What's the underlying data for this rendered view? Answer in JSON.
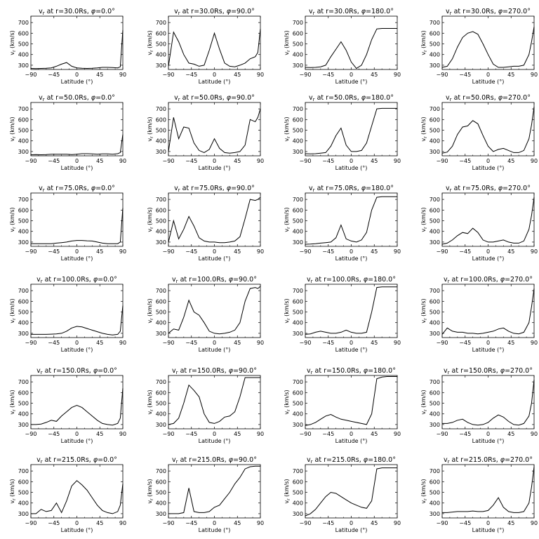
{
  "chart_data": {
    "type": "line",
    "grid": false,
    "x": [
      -90,
      -80,
      -70,
      -60,
      -50,
      -40,
      -30,
      -20,
      -10,
      0,
      10,
      20,
      30,
      40,
      50,
      60,
      70,
      80,
      85,
      90
    ],
    "xlabel": "Latitude (°)",
    "ylabel": "v_r (km/s)",
    "xticks": [
      -90,
      -45,
      0,
      45,
      90
    ],
    "yticks": [
      300,
      400,
      500,
      600,
      700
    ],
    "xlim": [
      -90,
      90
    ],
    "ylim": [
      260,
      760
    ],
    "radii": [
      "30.0",
      "50.0",
      "75.0",
      "100.0",
      "150.0",
      "215.0"
    ],
    "phis": [
      "0.0",
      "90.0",
      "180.0",
      "270.0"
    ],
    "panels": [
      {
        "r": "30.0",
        "phi": "0.0",
        "values": [
          270,
          268,
          270,
          272,
          275,
          290,
          310,
          325,
          290,
          275,
          272,
          270,
          272,
          275,
          280,
          280,
          278,
          275,
          285,
          630
        ]
      },
      {
        "r": "30.0",
        "phi": "90.0",
        "values": [
          290,
          610,
          520,
          400,
          320,
          310,
          290,
          300,
          440,
          600,
          450,
          320,
          290,
          285,
          300,
          320,
          360,
          380,
          420,
          640
        ]
      },
      {
        "r": "30.0",
        "phi": "180.0",
        "values": [
          280,
          278,
          280,
          285,
          300,
          380,
          450,
          520,
          440,
          330,
          270,
          300,
          400,
          540,
          640,
          645,
          645,
          645,
          645,
          645
        ]
      },
      {
        "r": "30.0",
        "phi": "270.0",
        "values": [
          280,
          290,
          360,
          470,
          560,
          600,
          615,
          590,
          500,
          400,
          310,
          280,
          280,
          285,
          290,
          290,
          300,
          400,
          520,
          660
        ]
      },
      {
        "r": "50.0",
        "phi": "0.0",
        "values": [
          270,
          272,
          270,
          272,
          275,
          275,
          275,
          275,
          272,
          275,
          280,
          280,
          278,
          275,
          278,
          278,
          275,
          280,
          290,
          460
        ]
      },
      {
        "r": "50.0",
        "phi": "90.0",
        "values": [
          300,
          620,
          420,
          530,
          520,
          380,
          310,
          290,
          320,
          420,
          330,
          290,
          285,
          290,
          300,
          360,
          600,
          580,
          620,
          700
        ]
      },
      {
        "r": "50.0",
        "phi": "180.0",
        "values": [
          280,
          278,
          280,
          285,
          290,
          350,
          450,
          520,
          360,
          300,
          300,
          310,
          380,
          540,
          700,
          705,
          705,
          705,
          705,
          705
        ]
      },
      {
        "r": "50.0",
        "phi": "270.0",
        "values": [
          285,
          295,
          350,
          460,
          530,
          540,
          590,
          560,
          450,
          350,
          300,
          320,
          330,
          310,
          290,
          290,
          310,
          420,
          550,
          720
        ]
      },
      {
        "r": "75.0",
        "phi": "0.0",
        "values": [
          285,
          285,
          285,
          285,
          285,
          290,
          295,
          300,
          310,
          315,
          315,
          312,
          310,
          300,
          290,
          285,
          285,
          285,
          300,
          620
        ]
      },
      {
        "r": "75.0",
        "phi": "90.0",
        "values": [
          300,
          500,
          330,
          420,
          540,
          450,
          340,
          310,
          300,
          300,
          295,
          295,
          300,
          310,
          350,
          520,
          700,
          690,
          700,
          720
        ]
      },
      {
        "r": "75.0",
        "phi": "180.0",
        "values": [
          280,
          282,
          285,
          290,
          295,
          300,
          340,
          460,
          330,
          310,
          300,
          320,
          390,
          600,
          720,
          725,
          725,
          725,
          725,
          725
        ]
      },
      {
        "r": "75.0",
        "phi": "270.0",
        "values": [
          280,
          290,
          320,
          360,
          390,
          380,
          430,
          390,
          320,
          300,
          300,
          310,
          320,
          300,
          290,
          290,
          310,
          420,
          550,
          720
        ]
      },
      {
        "r": "100.0",
        "phi": "0.0",
        "values": [
          290,
          290,
          290,
          290,
          292,
          295,
          300,
          320,
          350,
          365,
          360,
          345,
          330,
          315,
          300,
          290,
          285,
          290,
          320,
          560
        ]
      },
      {
        "r": "100.0",
        "phi": "90.0",
        "values": [
          300,
          340,
          330,
          450,
          610,
          500,
          470,
          400,
          320,
          300,
          295,
          300,
          310,
          330,
          400,
          600,
          720,
          730,
          720,
          740
        ]
      },
      {
        "r": "100.0",
        "phi": "180.0",
        "values": [
          290,
          295,
          310,
          320,
          310,
          300,
          300,
          310,
          330,
          310,
          300,
          300,
          310,
          500,
          730,
          735,
          735,
          735,
          735,
          735
        ]
      },
      {
        "r": "100.0",
        "phi": "270.0",
        "values": [
          290,
          350,
          320,
          310,
          310,
          300,
          300,
          295,
          300,
          310,
          320,
          340,
          350,
          320,
          300,
          295,
          310,
          400,
          550,
          720
        ]
      },
      {
        "r": "150.0",
        "phi": "0.0",
        "values": [
          300,
          300,
          305,
          320,
          340,
          330,
          380,
          420,
          460,
          480,
          460,
          420,
          380,
          340,
          310,
          300,
          295,
          310,
          360,
          640
        ]
      },
      {
        "r": "150.0",
        "phi": "90.0",
        "values": [
          300,
          310,
          360,
          500,
          670,
          620,
          560,
          400,
          320,
          310,
          330,
          370,
          380,
          420,
          560,
          740,
          740,
          740,
          740,
          740
        ]
      },
      {
        "r": "150.0",
        "phi": "180.0",
        "values": [
          290,
          300,
          320,
          350,
          380,
          395,
          370,
          350,
          340,
          330,
          320,
          310,
          300,
          400,
          730,
          745,
          750,
          750,
          750,
          750
        ]
      },
      {
        "r": "150.0",
        "phi": "270.0",
        "values": [
          310,
          310,
          320,
          340,
          350,
          320,
          300,
          295,
          300,
          320,
          360,
          390,
          370,
          330,
          300,
          295,
          310,
          380,
          500,
          720
        ]
      },
      {
        "r": "215.0",
        "phi": "0.0",
        "values": [
          300,
          300,
          340,
          320,
          330,
          400,
          310,
          420,
          560,
          610,
          570,
          520,
          450,
          380,
          330,
          310,
          300,
          320,
          380,
          580
        ]
      },
      {
        "r": "215.0",
        "phi": "90.0",
        "values": [
          300,
          300,
          300,
          310,
          540,
          320,
          310,
          310,
          320,
          360,
          380,
          440,
          500,
          580,
          640,
          720,
          740,
          745,
          745,
          745
        ]
      },
      {
        "r": "215.0",
        "phi": "180.0",
        "values": [
          280,
          300,
          340,
          400,
          460,
          500,
          490,
          460,
          430,
          400,
          380,
          360,
          350,
          420,
          720,
          730,
          730,
          730,
          730,
          730
        ]
      },
      {
        "r": "215.0",
        "phi": "270.0",
        "values": [
          310,
          310,
          315,
          320,
          320,
          320,
          325,
          320,
          320,
          330,
          380,
          450,
          360,
          320,
          310,
          310,
          320,
          400,
          550,
          740
        ]
      }
    ]
  }
}
